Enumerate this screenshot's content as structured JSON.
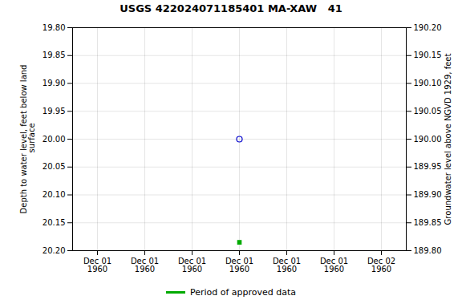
{
  "chart_data": {
    "type": "scatter",
    "title": "USGS 422024071185401 MA-XAW   41",
    "ylabel": "Depth to water level, feet below land\n surface",
    "y2label": "Groundwater level above NGVD 1929, feet",
    "categories": [
      "Dec 01\n1960",
      "Dec 01\n1960",
      "Dec 01\n1960",
      "Dec 01\n1960",
      "Dec 01\n1960",
      "Dec 01\n1960",
      "Dec 02\n1960"
    ],
    "series": [
      {
        "color": "#0000cc",
        "marker": "open_circle",
        "values": [
          null,
          null,
          null,
          20.0,
          null,
          null,
          null
        ]
      },
      {
        "name": "Period of approved data",
        "color": "#00aa00",
        "marker": "square",
        "values": [
          null,
          null,
          null,
          20.185,
          null,
          null,
          null
        ]
      }
    ],
    "ylim": [
      20.2,
      19.8
    ],
    "yticks": [
      {
        "value": 19.8,
        "label": "19.80"
      },
      {
        "value": 19.85,
        "label": "19.85"
      },
      {
        "value": 19.9,
        "label": "19.90"
      },
      {
        "value": 19.95,
        "label": "19.95"
      },
      {
        "value": 20.0,
        "label": "20.00"
      },
      {
        "value": 20.05,
        "label": "20.05"
      },
      {
        "value": 20.1,
        "label": "20.10"
      },
      {
        "value": 20.15,
        "label": "20.15"
      },
      {
        "value": 20.2,
        "label": "20.20"
      }
    ],
    "y2lim": [
      189.8,
      190.2
    ],
    "y2ticks": [
      {
        "value": 190.2,
        "label": "190.20"
      },
      {
        "value": 190.15,
        "label": "190.15"
      },
      {
        "value": 190.1,
        "label": "190.10"
      },
      {
        "value": 190.05,
        "label": "190.05"
      },
      {
        "value": 190.0,
        "label": "190.00"
      },
      {
        "value": 189.95,
        "label": "189.95"
      },
      {
        "value": 189.9,
        "label": "189.90"
      },
      {
        "value": 189.85,
        "label": "189.85"
      },
      {
        "value": 189.8,
        "label": "189.80"
      }
    ],
    "grid": true,
    "legend": "bottom"
  }
}
